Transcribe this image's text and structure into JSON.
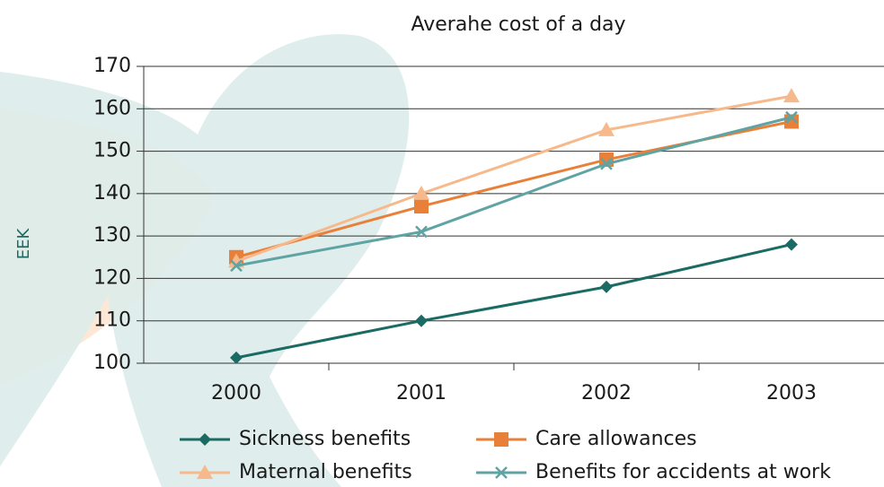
{
  "chart_data": {
    "type": "line",
    "title": "Averahe cost of a day",
    "y_label": "EEK",
    "categories": [
      "2000",
      "2001",
      "2002",
      "2003"
    ],
    "series": [
      {
        "name": "Sickness benefits",
        "color": "#1a6b63",
        "marker": "diamond",
        "values": [
          101.3,
          110,
          118,
          128
        ]
      },
      {
        "name": "Care allowances",
        "color": "#e8803a",
        "marker": "square",
        "values": [
          125,
          137,
          148,
          157
        ]
      },
      {
        "name": "Maternal benefits",
        "color": "#f7b98b",
        "marker": "triangle",
        "values": [
          124,
          140,
          155,
          163
        ]
      },
      {
        "name": "Benefits for accidents at work",
        "color": "#5fa3a3",
        "marker": "x",
        "values": [
          123,
          131,
          147,
          158
        ]
      }
    ],
    "ylim": [
      100,
      170
    ],
    "yticks": [
      100,
      110,
      120,
      130,
      140,
      150,
      160,
      170
    ],
    "grid": true
  }
}
